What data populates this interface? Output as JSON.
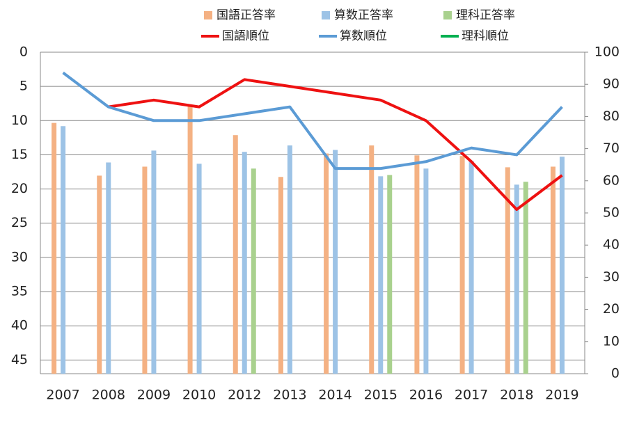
{
  "chart_data": {
    "type": "combo",
    "categories": [
      "2007",
      "2008",
      "2009",
      "2010",
      "2012",
      "2013",
      "2014",
      "2015",
      "2016",
      "2017",
      "2018",
      "2019"
    ],
    "ylim": [
      47,
      0
    ],
    "yticks": [
      0,
      5,
      10,
      15,
      20,
      25,
      30,
      35,
      40,
      45
    ],
    "y2lim": [
      0,
      100
    ],
    "y2ticks": [
      0,
      10,
      20,
      30,
      40,
      50,
      60,
      70,
      80,
      90,
      100
    ],
    "grid": true,
    "legend": "top",
    "series": [
      {
        "name": "国語正答率",
        "kind": "bar",
        "axis": "y2",
        "color": "#f4b183",
        "values": [
          78,
          61.6,
          64.4,
          83.3,
          74.2,
          61.2,
          68.5,
          71,
          67.9,
          67.7,
          64.2,
          64.4
        ]
      },
      {
        "name": "算数正答率",
        "kind": "bar",
        "axis": "y2",
        "color": "#9dc3e6",
        "values": [
          77,
          65.7,
          69.4,
          65.3,
          69,
          71,
          69.6,
          61.4,
          63.8,
          66.2,
          58.8,
          67.5
        ]
      },
      {
        "name": "理科正答率",
        "kind": "bar",
        "axis": "y2",
        "color": "#a9d18e",
        "values": [
          null,
          null,
          null,
          null,
          63.8,
          null,
          null,
          61.8,
          null,
          null,
          59.7,
          null
        ]
      },
      {
        "name": "国語順位",
        "kind": "line",
        "color": "#ee1111",
        "values": [
          null,
          8,
          7,
          8,
          4,
          5,
          6,
          7,
          10,
          16,
          23,
          18
        ]
      },
      {
        "name": "算数順位",
        "kind": "line",
        "color": "#5b9bd5",
        "values": [
          3,
          8,
          10,
          10,
          9,
          8,
          17,
          17,
          16,
          14,
          15,
          8
        ]
      },
      {
        "name": "理科順位",
        "kind": "line",
        "color": "#00b050",
        "values": [
          null,
          null,
          null,
          null,
          null,
          null,
          null,
          null,
          null,
          null,
          null,
          null
        ]
      }
    ]
  }
}
